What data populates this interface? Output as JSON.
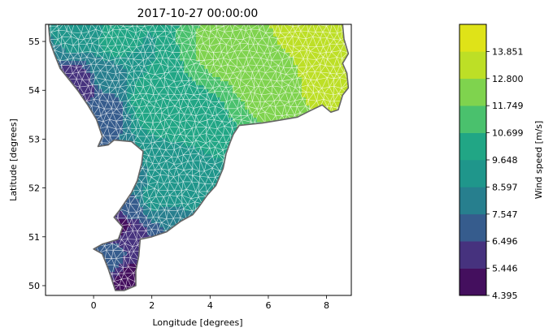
{
  "chart_data": [
    {
      "type": "tricontourf",
      "title": "2017-10-27 00:00:00",
      "xlabel": "Longitude [degrees]",
      "ylabel": "Latitude [degrees]",
      "xlim": [
        -1.65,
        8.85
      ],
      "ylim": [
        49.8,
        55.35
      ],
      "xticks": [
        0,
        2,
        4,
        6,
        8
      ],
      "yticks": [
        50,
        51,
        52,
        53,
        54,
        55
      ],
      "mesh": "triangular grid, white edges",
      "coastline_color": "#666666",
      "domain_outline": [
        [
          -1.55,
          55.35
        ],
        [
          8.55,
          55.35
        ],
        [
          8.6,
          55.05
        ],
        [
          8.75,
          54.75
        ],
        [
          8.55,
          54.55
        ],
        [
          8.7,
          54.35
        ],
        [
          8.75,
          54.05
        ],
        [
          8.55,
          53.9
        ],
        [
          8.4,
          53.6
        ],
        [
          8.15,
          53.55
        ],
        [
          7.85,
          53.7
        ],
        [
          7.5,
          53.6
        ],
        [
          7.0,
          53.45
        ],
        [
          6.5,
          53.4
        ],
        [
          5.8,
          53.33
        ],
        [
          5.0,
          53.28
        ],
        [
          4.8,
          53.1
        ],
        [
          4.7,
          52.95
        ],
        [
          4.55,
          52.7
        ],
        [
          4.45,
          52.4
        ],
        [
          4.2,
          52.05
        ],
        [
          3.9,
          51.85
        ],
        [
          3.6,
          51.6
        ],
        [
          3.4,
          51.45
        ],
        [
          3.0,
          51.32
        ],
        [
          2.5,
          51.1
        ],
        [
          2.0,
          51.0
        ],
        [
          1.6,
          50.95
        ],
        [
          1.55,
          50.6
        ],
        [
          1.45,
          50.3
        ],
        [
          1.45,
          50.0
        ],
        [
          1.05,
          49.9
        ],
        [
          0.75,
          49.9
        ],
        [
          0.5,
          50.35
        ],
        [
          0.3,
          50.65
        ],
        [
          0.0,
          50.75
        ],
        [
          0.3,
          50.85
        ],
        [
          0.85,
          50.95
        ],
        [
          1.0,
          51.2
        ],
        [
          0.7,
          51.4
        ],
        [
          0.9,
          51.55
        ],
        [
          1.3,
          51.9
        ],
        [
          1.5,
          52.15
        ],
        [
          1.65,
          52.5
        ],
        [
          1.7,
          52.75
        ],
        [
          1.3,
          52.95
        ],
        [
          0.7,
          52.98
        ],
        [
          0.5,
          52.88
        ],
        [
          0.15,
          52.85
        ],
        [
          0.3,
          53.05
        ],
        [
          0.1,
          53.4
        ],
        [
          -0.2,
          53.7
        ],
        [
          -0.55,
          54.0
        ],
        [
          -1.15,
          54.45
        ],
        [
          -1.35,
          54.75
        ],
        [
          -1.5,
          55.0
        ],
        [
          -1.55,
          55.35
        ]
      ],
      "speed_field_samples": [
        {
          "lon": 7.5,
          "lat": 55.2,
          "speed": 13.6
        },
        {
          "lon": 8.2,
          "lat": 54.4,
          "speed": 13.0
        },
        {
          "lon": 6.0,
          "lat": 54.4,
          "speed": 12.5
        },
        {
          "lon": 4.5,
          "lat": 54.8,
          "speed": 12.0
        },
        {
          "lon": 3.5,
          "lat": 53.5,
          "speed": 10.5
        },
        {
          "lon": 2.0,
          "lat": 53.8,
          "speed": 10.2
        },
        {
          "lon": 0.7,
          "lat": 55.0,
          "speed": 9.9
        },
        {
          "lon": -0.5,
          "lat": 55.1,
          "speed": 8.8
        },
        {
          "lon": 0.4,
          "lat": 54.3,
          "speed": 8.2
        },
        {
          "lon": 0.3,
          "lat": 53.6,
          "speed": 7.0
        },
        {
          "lon": -0.5,
          "lat": 54.1,
          "speed": 5.5
        },
        {
          "lon": 3.0,
          "lat": 52.4,
          "speed": 9.4
        },
        {
          "lon": 2.0,
          "lat": 51.8,
          "speed": 8.7
        },
        {
          "lon": 1.2,
          "lat": 51.5,
          "speed": 6.8
        },
        {
          "lon": 1.0,
          "lat": 51.3,
          "speed": 5.3
        },
        {
          "lon": 0.5,
          "lat": 50.5,
          "speed": 7.0
        },
        {
          "lon": 1.1,
          "lat": 50.1,
          "speed": 5.0
        }
      ],
      "colorbar": {
        "label": "Wind speed [m/s]",
        "ticks": [
          "4.395",
          "5.446",
          "6.496",
          "7.547",
          "8.597",
          "9.648",
          "10.699",
          "11.749",
          "12.800",
          "13.851"
        ],
        "levels": [
          4.395,
          5.446,
          6.496,
          7.547,
          8.597,
          9.648,
          10.699,
          11.749,
          12.8,
          13.851
        ],
        "colors": [
          "#440f5e",
          "#46327e",
          "#365c8d",
          "#277f8e",
          "#1f968b",
          "#21a685",
          "#4ac16d",
          "#7fd34e",
          "#bddf26",
          "#dfe318"
        ]
      }
    }
  ]
}
